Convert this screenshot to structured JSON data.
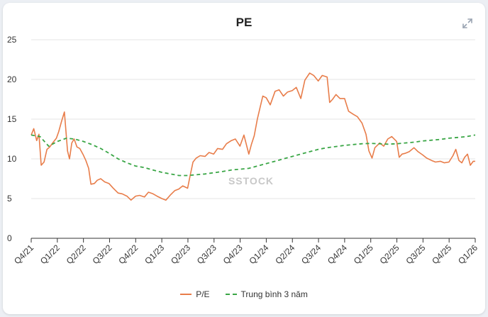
{
  "colors": {
    "pe": "#e87d4a",
    "avg": "#3aa646",
    "grid": "#e6e6e6",
    "watermark": "#c8c8c8"
  },
  "watermark_text": "SSTOCK",
  "chart_data": {
    "type": "line",
    "title": "PE",
    "xlabel": "",
    "ylabel": "",
    "ylim": [
      0,
      25
    ],
    "y_ticks": [
      0,
      5,
      10,
      15,
      20,
      25
    ],
    "x_ticks": [
      "Q4/21",
      "Q1/22",
      "Q2/22",
      "Q3/22",
      "Q4/22",
      "Q1/23",
      "Q2/23",
      "Q3/23",
      "Q4/23",
      "Q1/24",
      "Q2/24",
      "Q3/24",
      "Q4/24",
      "Q1/25",
      "Q2/25",
      "Q3/25",
      "Q4/25",
      "Q1/26"
    ],
    "grid": true,
    "legend_position": "bottom",
    "x_domain": [
      "2021-10-01",
      "2026-01-01"
    ],
    "series": [
      {
        "name": "P/E",
        "style": "solid",
        "points": [
          [
            "2021-10-01",
            13.0
          ],
          [
            "2021-10-10",
            13.8
          ],
          [
            "2021-10-20",
            12.3
          ],
          [
            "2021-10-28",
            13.1
          ],
          [
            "2021-11-05",
            9.2
          ],
          [
            "2021-11-15",
            9.6
          ],
          [
            "2021-11-25",
            11.2
          ],
          [
            "2021-12-05",
            11.5
          ],
          [
            "2021-12-15",
            12.0
          ],
          [
            "2021-12-28",
            12.6
          ],
          [
            "2022-01-05",
            13.4
          ],
          [
            "2022-01-15",
            14.7
          ],
          [
            "2022-01-25",
            15.9
          ],
          [
            "2022-02-05",
            11.0
          ],
          [
            "2022-02-12",
            10.0
          ],
          [
            "2022-02-20",
            12.0
          ],
          [
            "2022-02-28",
            12.5
          ],
          [
            "2022-03-10",
            11.5
          ],
          [
            "2022-03-20",
            11.3
          ],
          [
            "2022-04-01",
            10.5
          ],
          [
            "2022-04-10",
            9.8
          ],
          [
            "2022-04-20",
            8.8
          ],
          [
            "2022-04-28",
            6.8
          ],
          [
            "2022-05-10",
            6.9
          ],
          [
            "2022-05-20",
            7.3
          ],
          [
            "2022-06-01",
            7.5
          ],
          [
            "2022-06-15",
            7.1
          ],
          [
            "2022-06-30",
            6.9
          ],
          [
            "2022-07-15",
            6.3
          ],
          [
            "2022-08-01",
            5.7
          ],
          [
            "2022-08-15",
            5.6
          ],
          [
            "2022-09-01",
            5.3
          ],
          [
            "2022-09-15",
            4.8
          ],
          [
            "2022-10-01",
            5.3
          ],
          [
            "2022-10-15",
            5.4
          ],
          [
            "2022-11-01",
            5.2
          ],
          [
            "2022-11-15",
            5.8
          ],
          [
            "2022-12-01",
            5.6
          ],
          [
            "2022-12-15",
            5.3
          ],
          [
            "2023-01-01",
            5.0
          ],
          [
            "2023-01-15",
            4.8
          ],
          [
            "2023-02-01",
            5.5
          ],
          [
            "2023-02-15",
            6.0
          ],
          [
            "2023-03-01",
            6.2
          ],
          [
            "2023-03-15",
            6.6
          ],
          [
            "2023-04-01",
            6.3
          ],
          [
            "2023-04-10",
            7.9
          ],
          [
            "2023-04-20",
            9.6
          ],
          [
            "2023-05-01",
            10.1
          ],
          [
            "2023-05-15",
            10.4
          ],
          [
            "2023-06-01",
            10.3
          ],
          [
            "2023-06-15",
            10.8
          ],
          [
            "2023-07-01",
            10.6
          ],
          [
            "2023-07-15",
            11.3
          ],
          [
            "2023-08-01",
            11.2
          ],
          [
            "2023-08-15",
            11.9
          ],
          [
            "2023-09-01",
            12.3
          ],
          [
            "2023-09-15",
            12.5
          ],
          [
            "2023-10-01",
            11.6
          ],
          [
            "2023-10-15",
            13.0
          ],
          [
            "2023-11-01",
            10.6
          ],
          [
            "2023-11-10",
            11.8
          ],
          [
            "2023-11-20",
            12.9
          ],
          [
            "2023-12-01",
            15.0
          ],
          [
            "2023-12-10",
            16.4
          ],
          [
            "2023-12-20",
            17.9
          ],
          [
            "2024-01-01",
            17.7
          ],
          [
            "2024-01-15",
            16.8
          ],
          [
            "2024-02-01",
            18.5
          ],
          [
            "2024-02-15",
            18.7
          ],
          [
            "2024-03-01",
            17.9
          ],
          [
            "2024-03-15",
            18.4
          ],
          [
            "2024-04-01",
            18.6
          ],
          [
            "2024-04-15",
            19.0
          ],
          [
            "2024-05-01",
            17.6
          ],
          [
            "2024-05-15",
            19.9
          ],
          [
            "2024-06-01",
            20.8
          ],
          [
            "2024-06-15",
            20.5
          ],
          [
            "2024-07-01",
            19.8
          ],
          [
            "2024-07-15",
            20.5
          ],
          [
            "2024-08-01",
            20.3
          ],
          [
            "2024-08-10",
            17.1
          ],
          [
            "2024-08-20",
            17.5
          ],
          [
            "2024-09-01",
            18.1
          ],
          [
            "2024-09-15",
            17.6
          ],
          [
            "2024-10-01",
            17.6
          ],
          [
            "2024-10-15",
            16.0
          ],
          [
            "2024-11-01",
            15.6
          ],
          [
            "2024-11-15",
            15.3
          ],
          [
            "2024-12-01",
            14.5
          ],
          [
            "2024-12-15",
            13.1
          ],
          [
            "2024-12-25",
            11.0
          ],
          [
            "2025-01-05",
            10.1
          ],
          [
            "2025-01-15",
            11.4
          ],
          [
            "2025-02-01",
            12.0
          ],
          [
            "2025-02-15",
            11.6
          ],
          [
            "2025-03-01",
            12.5
          ],
          [
            "2025-03-15",
            12.8
          ],
          [
            "2025-04-01",
            12.2
          ],
          [
            "2025-04-10",
            10.2
          ],
          [
            "2025-04-20",
            10.6
          ],
          [
            "2025-05-01",
            10.7
          ],
          [
            "2025-05-15",
            10.9
          ],
          [
            "2025-06-01",
            11.4
          ],
          [
            "2025-06-15",
            10.9
          ],
          [
            "2025-07-01",
            10.5
          ],
          [
            "2025-07-15",
            10.1
          ],
          [
            "2025-08-01",
            9.8
          ],
          [
            "2025-08-15",
            9.6
          ],
          [
            "2025-09-01",
            9.7
          ],
          [
            "2025-09-15",
            9.5
          ],
          [
            "2025-10-01",
            9.6
          ],
          [
            "2025-10-15",
            10.4
          ],
          [
            "2025-10-25",
            11.2
          ],
          [
            "2025-11-05",
            9.8
          ],
          [
            "2025-11-15",
            9.5
          ],
          [
            "2025-11-25",
            10.2
          ],
          [
            "2025-12-05",
            10.6
          ],
          [
            "2025-12-15",
            9.2
          ],
          [
            "2025-12-25",
            9.7
          ],
          [
            "2026-01-01",
            9.7
          ]
        ]
      },
      {
        "name": "Trung bình 3 năm",
        "style": "dashed",
        "points": [
          [
            "2021-10-01",
            13.0
          ],
          [
            "2021-11-01",
            12.8
          ],
          [
            "2021-12-01",
            11.6
          ],
          [
            "2022-01-01",
            12.2
          ],
          [
            "2022-02-01",
            12.6
          ],
          [
            "2022-03-01",
            12.5
          ],
          [
            "2022-04-01",
            12.2
          ],
          [
            "2022-05-01",
            11.8
          ],
          [
            "2022-06-01",
            11.3
          ],
          [
            "2022-07-01",
            10.7
          ],
          [
            "2022-08-01",
            10.0
          ],
          [
            "2022-09-01",
            9.5
          ],
          [
            "2022-10-01",
            9.1
          ],
          [
            "2022-11-01",
            8.9
          ],
          [
            "2022-12-01",
            8.6
          ],
          [
            "2023-01-01",
            8.3
          ],
          [
            "2023-02-01",
            8.1
          ],
          [
            "2023-03-01",
            7.9
          ],
          [
            "2023-04-01",
            7.9
          ],
          [
            "2023-05-01",
            8.0
          ],
          [
            "2023-06-01",
            8.1
          ],
          [
            "2023-07-01",
            8.25
          ],
          [
            "2023-08-01",
            8.4
          ],
          [
            "2023-09-01",
            8.6
          ],
          [
            "2023-10-01",
            8.7
          ],
          [
            "2023-11-01",
            8.8
          ],
          [
            "2023-12-01",
            9.1
          ],
          [
            "2024-01-01",
            9.4
          ],
          [
            "2024-02-01",
            9.7
          ],
          [
            "2024-03-01",
            10.0
          ],
          [
            "2024-04-01",
            10.3
          ],
          [
            "2024-05-01",
            10.6
          ],
          [
            "2024-06-01",
            10.9
          ],
          [
            "2024-07-01",
            11.2
          ],
          [
            "2024-08-01",
            11.4
          ],
          [
            "2024-09-01",
            11.55
          ],
          [
            "2024-10-01",
            11.7
          ],
          [
            "2024-11-01",
            11.8
          ],
          [
            "2024-12-01",
            11.9
          ],
          [
            "2025-01-01",
            11.95
          ],
          [
            "2025-02-01",
            11.9
          ],
          [
            "2025-03-01",
            11.85
          ],
          [
            "2025-04-01",
            11.9
          ],
          [
            "2025-05-01",
            12.0
          ],
          [
            "2025-06-01",
            12.1
          ],
          [
            "2025-07-01",
            12.25
          ],
          [
            "2025-08-01",
            12.35
          ],
          [
            "2025-09-01",
            12.45
          ],
          [
            "2025-10-01",
            12.6
          ],
          [
            "2025-11-01",
            12.7
          ],
          [
            "2025-12-01",
            12.8
          ],
          [
            "2026-01-01",
            13.0
          ]
        ]
      }
    ]
  }
}
